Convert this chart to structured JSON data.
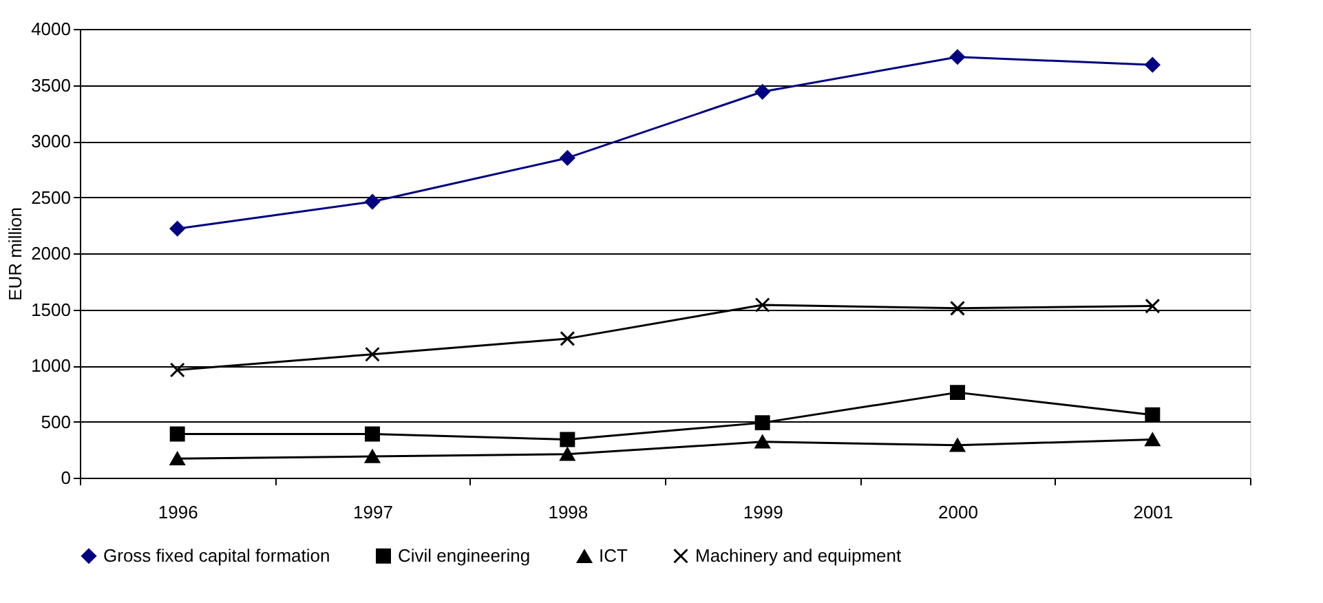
{
  "chart_data": {
    "type": "line",
    "ylabel": "EUR million",
    "categories": [
      "1996",
      "1997",
      "1998",
      "1999",
      "2000",
      "2001"
    ],
    "series": [
      {
        "name": "Gross fixed capital formation",
        "color": "#000080",
        "marker": "diamond",
        "values": [
          2220,
          2460,
          2850,
          3440,
          3750,
          3680
        ]
      },
      {
        "name": "Civil engineering",
        "color": "#000000",
        "marker": "square",
        "values": [
          390,
          390,
          340,
          490,
          760,
          560
        ]
      },
      {
        "name": "ICT",
        "color": "#000000",
        "marker": "triangle",
        "values": [
          170,
          190,
          210,
          320,
          290,
          340
        ]
      },
      {
        "name": "Machinery and equipment",
        "color": "#000000",
        "marker": "cross",
        "values": [
          960,
          1100,
          1240,
          1540,
          1510,
          1530
        ]
      }
    ],
    "line_style": "solid",
    "ylim": [
      0,
      4000
    ],
    "yticks": [
      0,
      500,
      1000,
      1500,
      2000,
      2500,
      3000,
      3500,
      4000
    ],
    "grid": "y",
    "legend": "bottom"
  }
}
